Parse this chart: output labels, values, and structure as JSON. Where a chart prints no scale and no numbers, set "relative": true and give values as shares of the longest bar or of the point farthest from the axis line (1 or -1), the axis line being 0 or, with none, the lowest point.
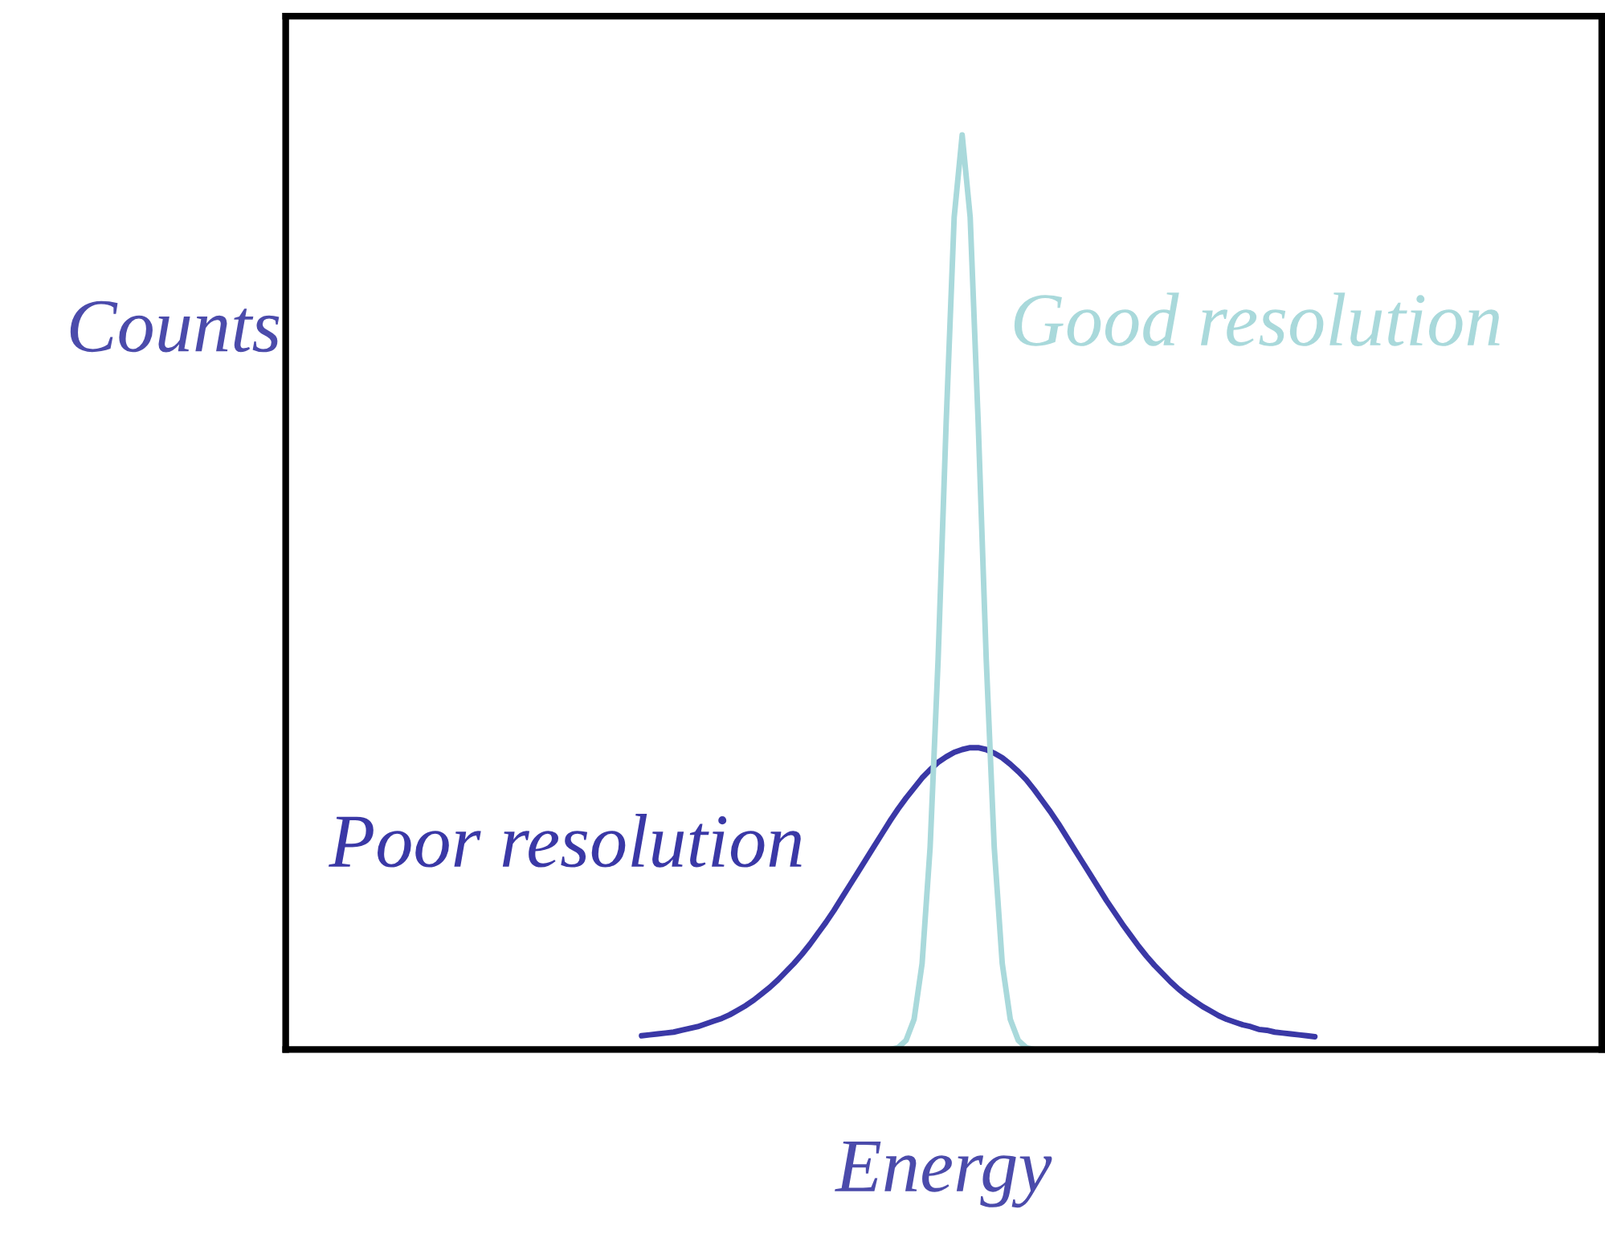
{
  "chart_data": {
    "type": "line",
    "xlabel": "Energy",
    "ylabel": "Counts",
    "relative": true,
    "tick_labels": false,
    "categories": [
      null,
      null,
      null,
      null,
      null,
      null,
      null,
      null,
      null,
      null,
      null,
      null,
      null,
      null,
      null,
      null,
      null,
      null,
      null,
      null,
      null,
      null,
      null,
      null,
      null,
      null,
      null,
      null,
      null,
      null,
      null,
      null,
      null,
      null,
      null,
      null,
      null,
      null,
      null,
      null,
      null,
      null,
      null,
      null,
      null,
      null,
      null,
      null,
      null,
      null,
      null,
      null,
      null,
      null,
      null,
      null,
      null,
      null,
      null,
      null,
      null,
      null,
      null,
      null,
      null,
      null,
      null,
      null,
      null,
      null,
      null,
      null,
      null,
      null,
      null,
      null,
      null,
      null,
      null,
      null,
      null,
      null,
      null,
      null,
      null
    ],
    "series": [
      {
        "name": "Poor resolution",
        "color": "#3a38a6",
        "values": [
          0.015,
          0.016,
          0.017,
          0.018,
          0.019,
          0.021,
          0.023,
          0.025,
          0.028,
          0.031,
          0.034,
          0.038,
          0.043,
          0.048,
          0.054,
          0.061,
          0.068,
          0.076,
          0.085,
          0.094,
          0.104,
          0.115,
          0.127,
          0.139,
          0.152,
          0.166,
          0.18,
          0.194,
          0.208,
          0.222,
          0.236,
          0.25,
          0.263,
          0.275,
          0.286,
          0.297,
          0.306,
          0.314,
          0.32,
          0.325,
          0.328,
          0.33,
          0.33,
          0.328,
          0.324,
          0.319,
          0.312,
          0.304,
          0.295,
          0.284,
          0.272,
          0.26,
          0.247,
          0.233,
          0.219,
          0.205,
          0.191,
          0.177,
          0.163,
          0.15,
          0.137,
          0.125,
          0.113,
          0.102,
          0.092,
          0.083,
          0.074,
          0.066,
          0.059,
          0.053,
          0.047,
          0.042,
          0.037,
          0.033,
          0.03,
          0.027,
          0.025,
          0.022,
          0.021,
          0.019,
          0.018,
          0.017,
          0.016,
          0.015,
          0.014
        ]
      },
      {
        "name": "Good resolution",
        "color": "#a9d9db",
        "values": [
          null,
          null,
          null,
          null,
          null,
          null,
          null,
          null,
          null,
          null,
          null,
          null,
          null,
          null,
          null,
          null,
          null,
          null,
          null,
          null,
          null,
          null,
          null,
          null,
          null,
          null,
          null,
          null,
          null,
          null,
          null,
          0.0,
          0.002,
          0.01,
          0.033,
          0.094,
          0.221,
          0.427,
          0.685,
          0.91,
          1.0,
          0.91,
          0.685,
          0.427,
          0.221,
          0.094,
          0.033,
          0.01,
          0.002,
          0.0,
          0.0,
          0.0,
          null,
          null,
          null,
          null,
          null,
          null,
          null,
          null,
          null,
          null,
          null,
          null,
          null,
          null,
          null,
          null,
          null,
          null,
          null,
          null,
          null,
          null,
          null,
          null,
          null,
          null,
          null,
          null,
          null,
          null,
          null,
          null,
          null
        ]
      }
    ]
  }
}
